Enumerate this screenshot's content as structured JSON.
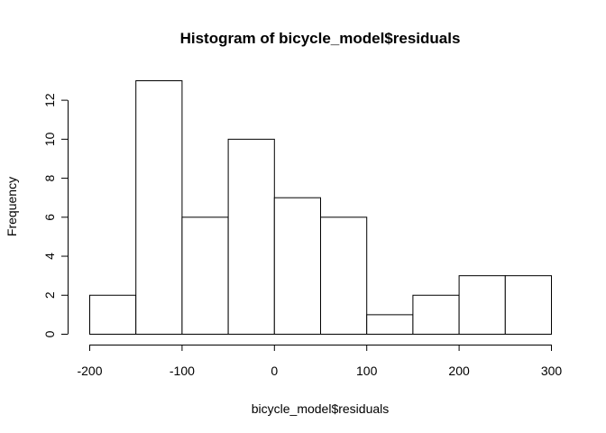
{
  "chart_data": {
    "type": "bar",
    "title": "Histogram of bicycle_model$residuals",
    "xlabel": "bicycle_model$residuals",
    "ylabel": "Frequency",
    "bins": [
      {
        "start": -200,
        "end": -150,
        "count": 2
      },
      {
        "start": -150,
        "end": -100,
        "count": 13
      },
      {
        "start": -100,
        "end": -50,
        "count": 6
      },
      {
        "start": -50,
        "end": 0,
        "count": 10
      },
      {
        "start": 0,
        "end": 50,
        "count": 7
      },
      {
        "start": 50,
        "end": 100,
        "count": 6
      },
      {
        "start": 100,
        "end": 150,
        "count": 1
      },
      {
        "start": 150,
        "end": 200,
        "count": 2
      },
      {
        "start": 200,
        "end": 250,
        "count": 3
      },
      {
        "start": 250,
        "end": 300,
        "count": 3
      }
    ],
    "xlim": [
      -200,
      300
    ],
    "ylim": [
      0,
      13
    ],
    "xticks": [
      -200,
      -100,
      0,
      100,
      200,
      300
    ],
    "yticks": [
      0,
      2,
      4,
      6,
      8,
      10,
      12
    ],
    "grid": false,
    "legend": "none"
  }
}
